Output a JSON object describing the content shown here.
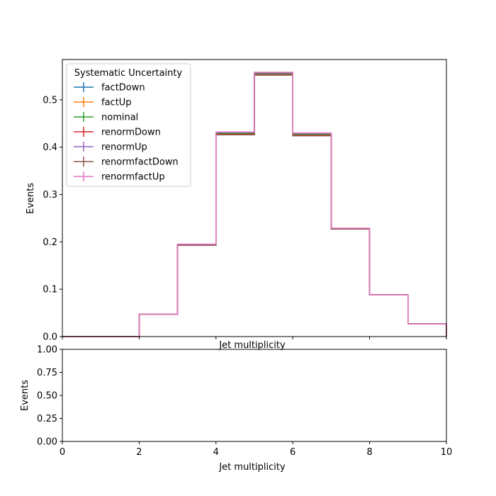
{
  "chart_data": [
    {
      "type": "line",
      "drawstyle": "step-histogram",
      "xlabel": "Jet multiplicity",
      "ylabel": "Events",
      "xlim": [
        0,
        10
      ],
      "ylim": [
        0,
        0.585
      ],
      "xticks": [
        0,
        2,
        4,
        6,
        8,
        10
      ],
      "xtick_labels_visible": false,
      "yticks": [
        0.0,
        0.1,
        0.2,
        0.3,
        0.4,
        0.5
      ],
      "ytick_labels": [
        "0.0",
        "0.1",
        "0.2",
        "0.3",
        "0.4",
        "0.5"
      ],
      "legend": {
        "title": "Systematic Uncertainty",
        "placement": "upper left"
      },
      "bin_edges": [
        0,
        1,
        2,
        3,
        4,
        5,
        6,
        7,
        8,
        9,
        10
      ],
      "series": [
        {
          "name": "factDown",
          "color": "#1f77b4",
          "values": [
            0,
            0,
            0.047,
            0.193,
            0.428,
            0.553,
            0.426,
            0.227,
            0.088,
            0.027
          ]
        },
        {
          "name": "factUp",
          "color": "#ff7f0e",
          "values": [
            0,
            0,
            0.047,
            0.194,
            0.43,
            0.556,
            0.428,
            0.228,
            0.088,
            0.027
          ]
        },
        {
          "name": "nominal",
          "color": "#2ca02c",
          "values": [
            0,
            0,
            0.047,
            0.194,
            0.429,
            0.555,
            0.427,
            0.228,
            0.088,
            0.027
          ]
        },
        {
          "name": "renormDown",
          "color": "#d62728",
          "values": [
            0,
            0,
            0.047,
            0.193,
            0.427,
            0.553,
            0.425,
            0.227,
            0.088,
            0.027
          ]
        },
        {
          "name": "renormUp",
          "color": "#9467bd",
          "values": [
            0,
            0,
            0.047,
            0.195,
            0.431,
            0.557,
            0.429,
            0.228,
            0.088,
            0.027
          ]
        },
        {
          "name": "renormfactDown",
          "color": "#8c564b",
          "values": [
            0,
            0,
            0.047,
            0.193,
            0.426,
            0.552,
            0.424,
            0.227,
            0.088,
            0.027
          ]
        },
        {
          "name": "renormfactUp",
          "color": "#e377c2",
          "values": [
            0,
            0,
            0.047,
            0.195,
            0.432,
            0.558,
            0.43,
            0.229,
            0.088,
            0.027
          ]
        }
      ]
    },
    {
      "type": "line",
      "xlabel": "Jet multiplicity",
      "ylabel": "Events",
      "xlim": [
        0,
        10
      ],
      "ylim": [
        0,
        1
      ],
      "xticks": [
        0,
        2,
        4,
        6,
        8,
        10
      ],
      "xtick_labels": [
        "0",
        "2",
        "4",
        "6",
        "8",
        "10"
      ],
      "yticks": [
        0.0,
        0.25,
        0.5,
        0.75,
        1.0
      ],
      "ytick_labels": [
        "0.00",
        "0.25",
        "0.50",
        "0.75",
        "1.00"
      ],
      "series": []
    }
  ]
}
